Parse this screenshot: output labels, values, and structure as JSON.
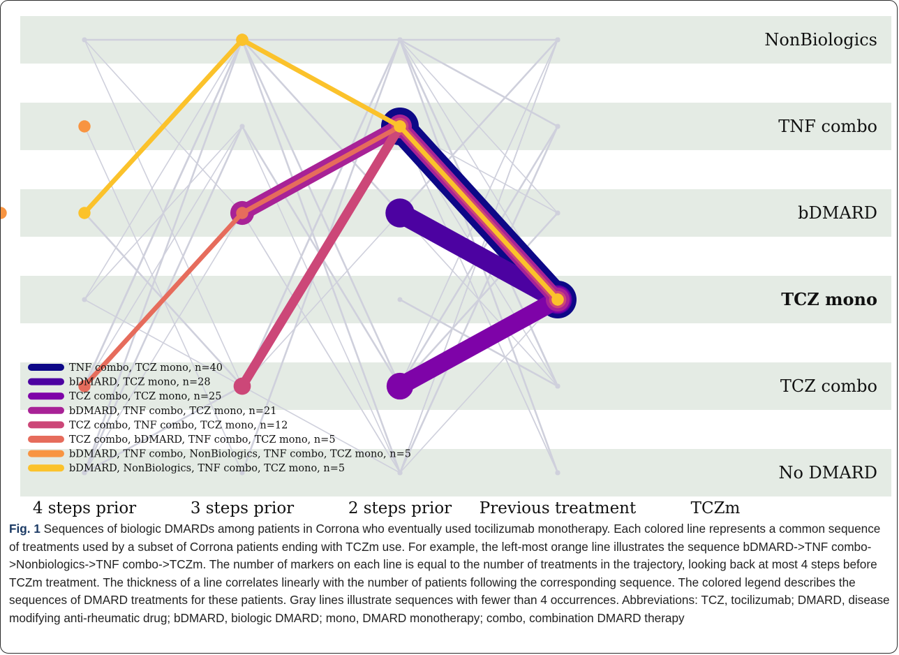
{
  "figure": {
    "caption_label": "Fig. 1",
    "caption_text": " Sequences of biologic DMARDs among patients in Corrona who eventually used tocilizumab monotherapy. Each colored line represents a common sequence of treatments used by a subset of Corrona patients ending with TCZm use. For example, the left-most orange line illustrates the sequence bDMARD->TNF combo->Nonbiologics->TNF combo->TCZm. The number of markers on each line is equal to the number of treatments in the trajectory, looking back at most 4 steps before TCZm treatment. The thickness of a line correlates linearly with the number of patients following the corresponding sequence. The colored legend describes the sequences of DMARD treatments for these patients. Gray lines illustrate sequences with fewer than 4 occurrences. Abbreviations: TCZ, tocilizumab; DMARD, disease modifying anti-rheumatic drug; bDMARD, biologic DMARD; mono, DMARD monotherapy; combo, combination DMARD therapy"
  },
  "chart_data": {
    "type": "line",
    "categories": [
      "NonBiologics",
      "TNF combo",
      "bDMARD",
      "TCZ mono",
      "TCZ combo",
      "No DMARD"
    ],
    "bold_category": "TCZ mono",
    "x": [
      "4 steps prior",
      "3 steps prior",
      "2 steps prior",
      "Previous treatment",
      "TCZm"
    ],
    "legend_position": "lower-left",
    "series": [
      {
        "name": "TNF combo, TCZ mono, n=40",
        "n": 40,
        "color": "#0d0887",
        "path": [
          "TNF combo",
          "TCZ mono"
        ]
      },
      {
        "name": "bDMARD, TCZ mono, n=28",
        "n": 28,
        "color": "#4c02a1",
        "path": [
          "bDMARD",
          "TCZ mono"
        ]
      },
      {
        "name": "TCZ combo, TCZ mono, n=25",
        "n": 25,
        "color": "#7e03a8",
        "path": [
          "TCZ combo",
          "TCZ mono"
        ]
      },
      {
        "name": "bDMARD, TNF combo, TCZ mono, n=21",
        "n": 21,
        "color": "#a82296",
        "path": [
          "bDMARD",
          "TNF combo",
          "TCZ mono"
        ]
      },
      {
        "name": "TCZ combo, TNF combo, TCZ mono, n=12",
        "n": 12,
        "color": "#cc4778",
        "path": [
          "TCZ combo",
          "TNF combo",
          "TCZ mono"
        ]
      },
      {
        "name": "TCZ combo, bDMARD, TNF combo, TCZ mono, n=5",
        "n": 5,
        "color": "#e66c5c",
        "path": [
          "TCZ combo",
          "bDMARD",
          "TNF combo",
          "TCZ mono"
        ]
      },
      {
        "name": "bDMARD, TNF combo, NonBiologics, TNF combo, TCZ mono, n=5",
        "n": 5,
        "color": "#f89441",
        "path": [
          "bDMARD",
          "TNF combo",
          "NonBiologics",
          "TNF combo",
          "TCZ mono"
        ]
      },
      {
        "name": "bDMARD, NonBiologics, TNF combo, TCZ mono, n=5",
        "n": 5,
        "color": "#fbc22b",
        "path": [
          "bDMARD",
          "NonBiologics",
          "TNF combo",
          "TCZ mono"
        ]
      }
    ],
    "gray_color": "#cfd0dc",
    "gray_sequences": [
      [
        "NonBiologics",
        "NonBiologics",
        "NonBiologics",
        "NonBiologics"
      ],
      [
        "NonBiologics",
        "bDMARD",
        "TNF combo",
        "No DMARD"
      ],
      [
        "TNF combo",
        "No DMARD",
        "NonBiologics",
        "TNF combo"
      ],
      [
        "bDMARD",
        "TCZ combo",
        "NonBiologics",
        "TCZ combo"
      ],
      [
        "TCZ mono",
        "NonBiologics",
        "TNF combo",
        "bDMARD"
      ],
      [
        "TCZ mono",
        "TNF combo",
        "No DMARD",
        "NonBiologics"
      ],
      [
        "TCZ combo",
        "NonBiologics",
        "bDMARD",
        "NonBiologics"
      ],
      [
        "TCZ combo",
        "NonBiologics",
        "TNF combo",
        "No DMARD"
      ],
      [
        "No DMARD",
        "bDMARD",
        "No DMARD",
        "NonBiologics"
      ],
      [
        "No DMARD",
        "TCZ combo",
        "NonBiologics",
        "TNF combo"
      ],
      [
        "No DMARD",
        "NonBiologics",
        "TCZ combo",
        "bDMARD"
      ],
      [
        "TCZ mono",
        "TCZ combo",
        "No DMARD",
        "NonBiologics"
      ],
      [
        "TCZ combo",
        "NonBiologics",
        "No DMARD",
        "TNF combo"
      ],
      [
        "NonBiologics",
        "TCZ combo",
        "bDMARD",
        "TCZ combo"
      ],
      [
        "No DMARD",
        "TCZ combo",
        "TNF combo",
        "No DMARD"
      ],
      [
        "No DMARD",
        "NonBiologics",
        "TCZ combo",
        "bDMARD"
      ],
      [
        "TCZ combo",
        "NonBiologics",
        "TCZ combo",
        "NonBiologics"
      ],
      [
        "TCZ combo",
        "bDMARD",
        "No DMARD",
        "TNF combo"
      ],
      [
        "No DMARD",
        "TNF combo",
        "TCZ combo",
        "TNF combo"
      ],
      [
        "No DMARD",
        "NonBiologics",
        "No DMARD",
        "NonBiologics"
      ],
      [
        "TCZ combo",
        "TNF combo",
        "TCZ combo",
        "NonBiologics"
      ],
      [
        "No DMARD",
        "NonBiologics",
        "TCZ combo"
      ],
      [
        "NonBiologics",
        "bDMARD"
      ],
      [
        "TNF combo",
        "TCZ combo"
      ],
      [
        "TCZ mono",
        "TCZ combo"
      ],
      [
        "No DMARD",
        "NonBiologics"
      ],
      [
        "NonBiologics",
        "TNF combo"
      ],
      [
        "NonBiologics",
        "No DMARD"
      ],
      [
        "No DMARD",
        "TCZ mono"
      ],
      [
        "NonBiologics",
        "TCZ mono"
      ],
      [
        "TCZ combo",
        "TCZ mono"
      ]
    ]
  }
}
